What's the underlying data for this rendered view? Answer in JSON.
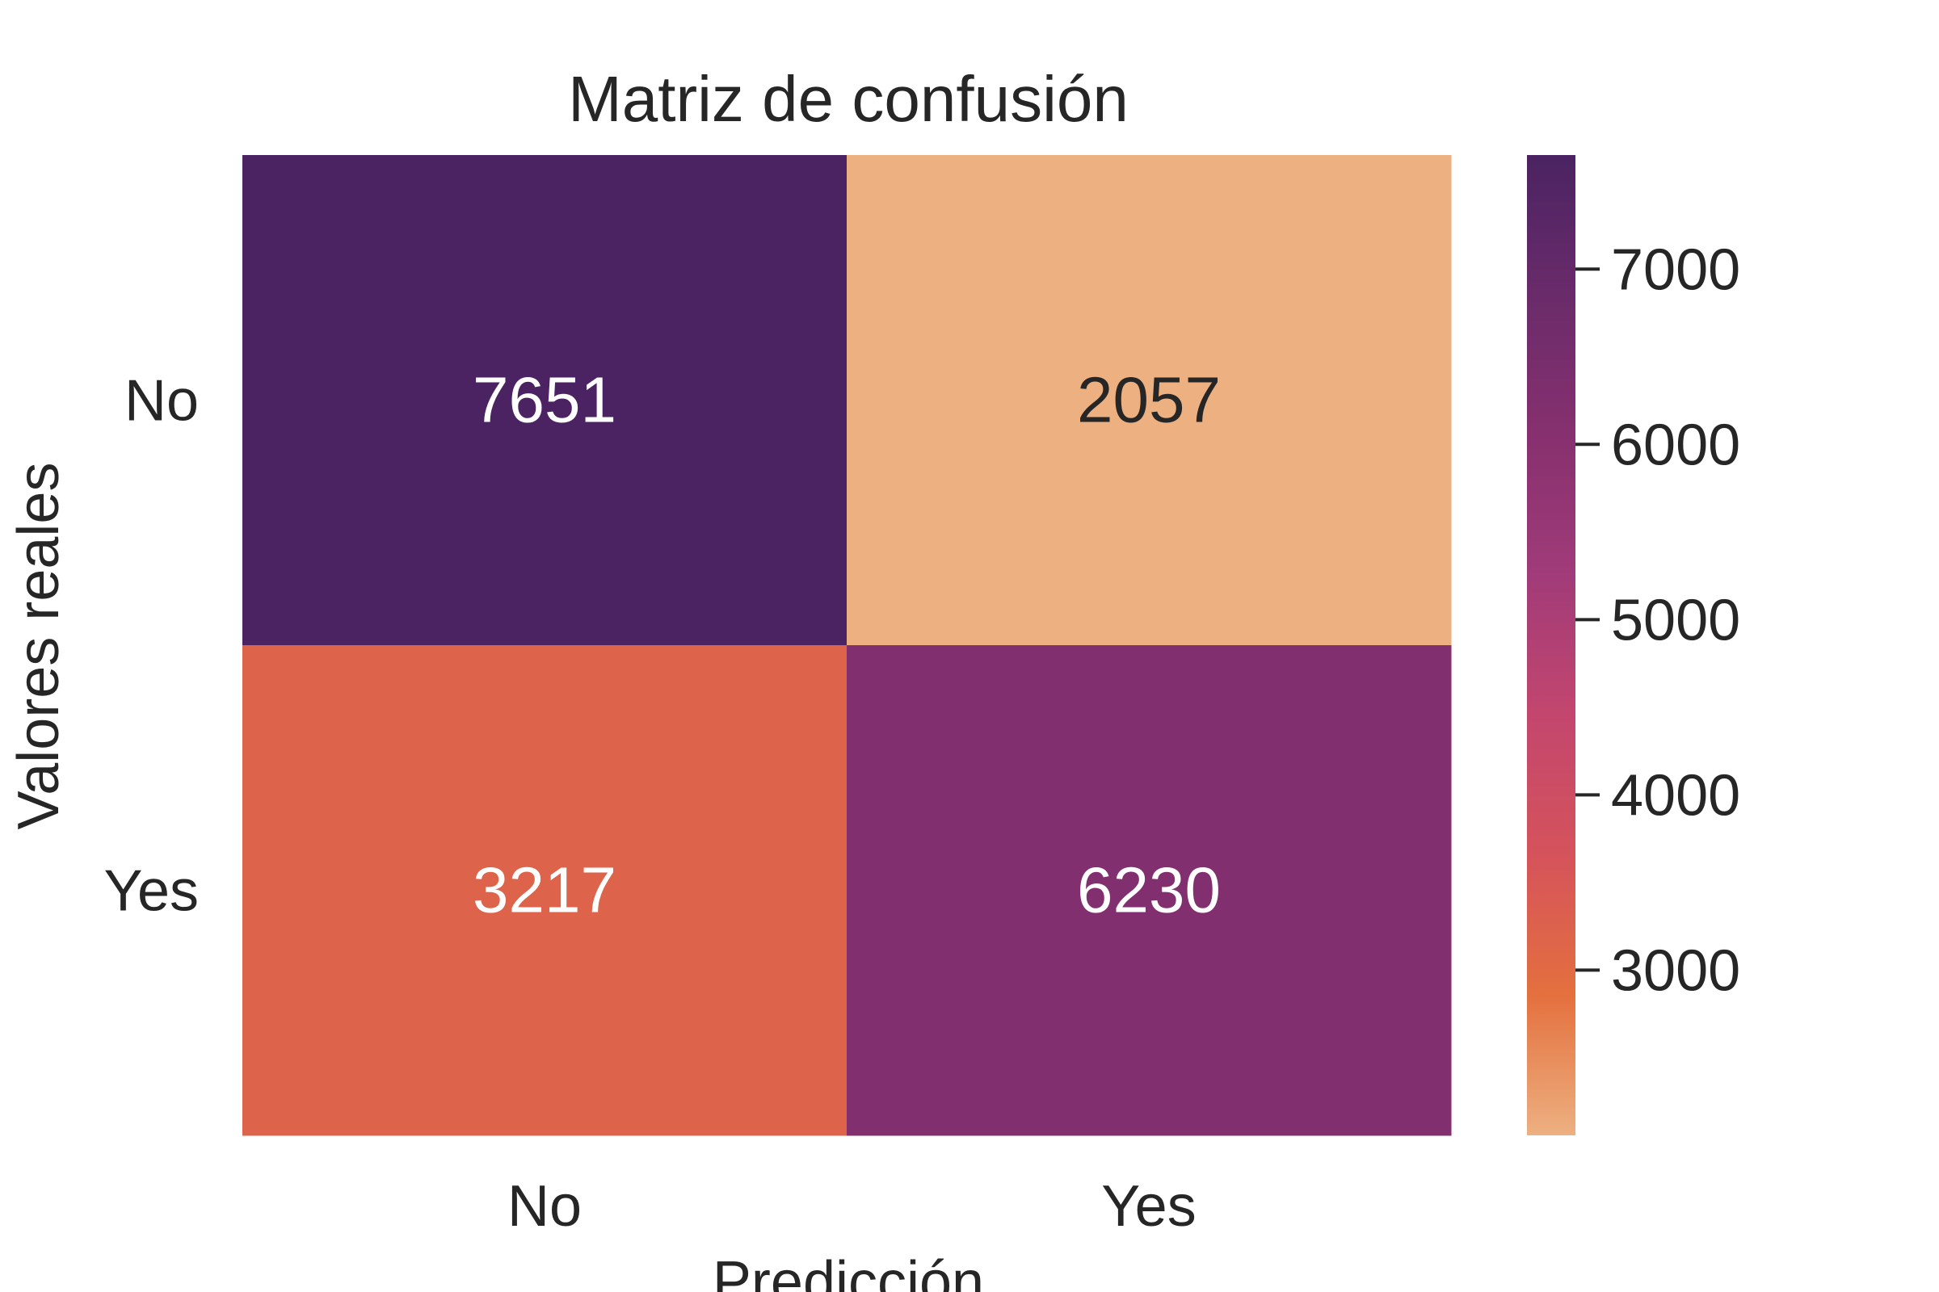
{
  "chart_data": {
    "type": "heatmap",
    "title": "Matriz de confusión",
    "xlabel": "Predicción",
    "ylabel": "Valores reales",
    "x_categories": [
      "No",
      "Yes"
    ],
    "y_categories": [
      "No",
      "Yes"
    ],
    "values": [
      [
        7651,
        2057
      ],
      [
        3217,
        6230
      ]
    ],
    "colorbar": {
      "range": [
        2057,
        7651
      ],
      "ticks": [
        3000,
        4000,
        5000,
        6000,
        7000
      ],
      "tick_labels": [
        "3000",
        "4000",
        "5000",
        "6000",
        "7000"
      ],
      "colormap": "flare",
      "colors": [
        "#edb081",
        "#e4703e",
        "#d5535b",
        "#c3466e",
        "#a13b79",
        "#87306f",
        "#6a2b6a",
        "#4b2362"
      ]
    },
    "cell_text_colors": {
      "light": "#ffffff",
      "dark": "#262626"
    },
    "grid": false,
    "legend": "none"
  }
}
